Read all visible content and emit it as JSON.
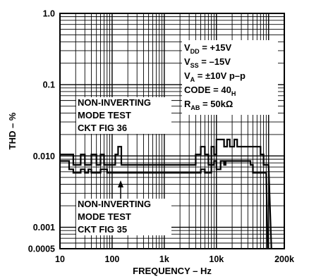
{
  "chart_data": {
    "type": "line",
    "scale": {
      "x": "log",
      "y": "log"
    },
    "xlabel": "FREQUENCY – Hz",
    "ylabel": "THD – %",
    "xlim": [
      10,
      200000
    ],
    "ylim": [
      0.0005,
      1.0
    ],
    "xticks": [
      {
        "value": 10,
        "label": "10"
      },
      {
        "value": 100,
        "label": "100"
      },
      {
        "value": 1000,
        "label": "1k"
      },
      {
        "value": 10000,
        "label": "10k"
      },
      {
        "value": 200000,
        "label": "200k"
      }
    ],
    "yticks": [
      {
        "value": 1.0,
        "label": "1.0"
      },
      {
        "value": 0.1,
        "label": "0.1"
      },
      {
        "value": 0.01,
        "label": "0.010"
      },
      {
        "value": 0.001,
        "label": "0.001"
      },
      {
        "value": 0.0005,
        "label": "0.0005"
      }
    ],
    "grid": true,
    "series": [
      {
        "name": "NON-INVERTING MODE TEST CKT FIG 36",
        "x": [
          10,
          15,
          18,
          20,
          25,
          30,
          35,
          40,
          45,
          50,
          55,
          60,
          70,
          80,
          100,
          115,
          130,
          150,
          200,
          300,
          500,
          1000,
          2000,
          3000,
          4000,
          5000,
          6000,
          7000,
          8000,
          9000,
          10000,
          11000,
          12000,
          14000,
          16000,
          18000,
          20000,
          22000,
          25000,
          30000,
          40000,
          50000,
          60000,
          70000,
          80000,
          90000,
          100000
        ],
        "y": [
          0.0105,
          0.0105,
          0.0075,
          0.0075,
          0.0105,
          0.0075,
          0.0075,
          0.0105,
          0.0105,
          0.0075,
          0.0075,
          0.0105,
          0.0075,
          0.0075,
          0.0075,
          0.0105,
          0.0135,
          0.0075,
          0.0075,
          0.0075,
          0.0075,
          0.0075,
          0.0075,
          0.0075,
          0.0105,
          0.0135,
          0.0105,
          0.0075,
          0.0135,
          0.0105,
          0.017,
          0.017,
          0.017,
          0.0135,
          0.017,
          0.0135,
          0.0135,
          0.017,
          0.0135,
          0.0135,
          0.0135,
          0.0135,
          0.0135,
          0.0105,
          0.0075,
          0.0075,
          0.0075
        ]
      },
      {
        "name": "NON-INVERTING MODE TEST CKT FIG 35",
        "x": [
          10,
          15,
          18,
          20,
          25,
          30,
          35,
          40,
          50,
          60,
          80,
          100,
          200,
          500,
          1000,
          2000,
          3000,
          4000,
          5000,
          6000,
          7000,
          8000,
          9000,
          10000,
          12000,
          14000,
          15000,
          20000,
          30000,
          40000,
          45000,
          50000,
          55000,
          60000,
          65000,
          70000,
          80000,
          90000
        ],
        "y": [
          0.0085,
          0.0065,
          0.0058,
          0.0058,
          0.0065,
          0.0058,
          0.0065,
          0.0058,
          0.0058,
          0.0065,
          0.0058,
          0.0058,
          0.0058,
          0.0058,
          0.0058,
          0.0058,
          0.0058,
          0.0058,
          0.0065,
          0.0058,
          0.0058,
          0.0075,
          0.0085,
          0.0065,
          0.0085,
          0.0075,
          0.0085,
          0.0085,
          0.0085,
          0.0085,
          0.0075,
          0.0058,
          0.0058,
          0.0058,
          0.0058,
          0.0058,
          0.0058,
          0.0058
        ]
      }
    ],
    "annotations": {
      "upper_curve": [
        "NON-INVERTING",
        "MODE TEST",
        "CKT FIG 36"
      ],
      "lower_curve": [
        "NON-INVERTING",
        "MODE TEST",
        "CKT FIG 35"
      ],
      "conditions": [
        {
          "main": "V",
          "sub": "DD",
          "rest": " = +15V"
        },
        {
          "main": "V",
          "sub": "SS",
          "rest": " = –15V"
        },
        {
          "main": "V",
          "sub": "A",
          "rest": " = ±10V p–p"
        },
        {
          "main": "CODE = 40",
          "sub": "H",
          "rest": ""
        },
        {
          "main": "R",
          "sub": "AB",
          "rest": " = 50kΩ"
        }
      ]
    }
  }
}
